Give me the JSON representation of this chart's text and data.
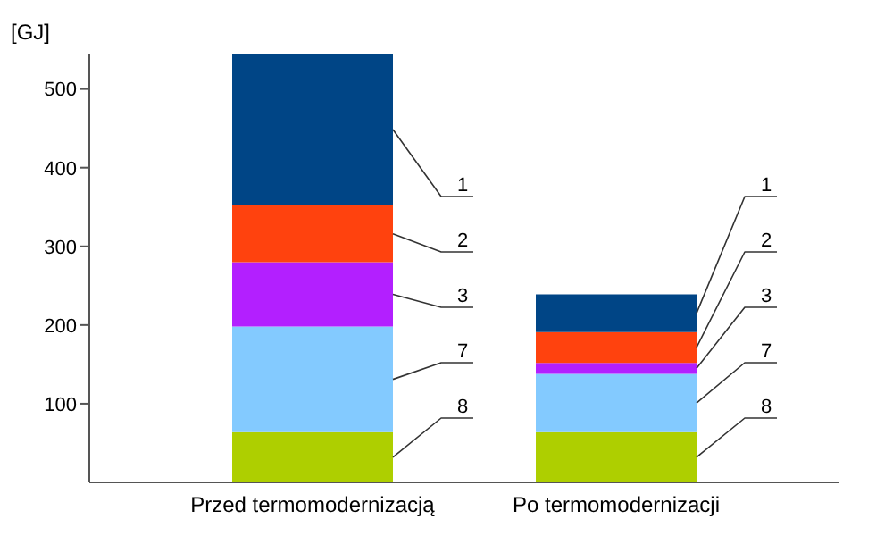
{
  "chart_data": {
    "type": "bar",
    "stacked": true,
    "ylabel": "[GJ]",
    "categories": [
      "Przed termomodernizacją",
      "Po termomodernizacji"
    ],
    "series": [
      {
        "name": "8",
        "color": "#aecf00",
        "values": [
          64,
          64
        ]
      },
      {
        "name": "7",
        "color": "#83caff",
        "values": [
          134,
          74
        ]
      },
      {
        "name": "3",
        "color": "#b31fff",
        "values": [
          82,
          14
        ]
      },
      {
        "name": "2",
        "color": "#ff420e",
        "values": [
          72,
          39
        ]
      },
      {
        "name": "1",
        "color": "#004586",
        "values": [
          193,
          48
        ]
      }
    ],
    "ylim": [
      0,
      545
    ],
    "yticks": [
      100,
      200,
      300,
      400,
      500
    ],
    "grid": false,
    "legend": false
  }
}
